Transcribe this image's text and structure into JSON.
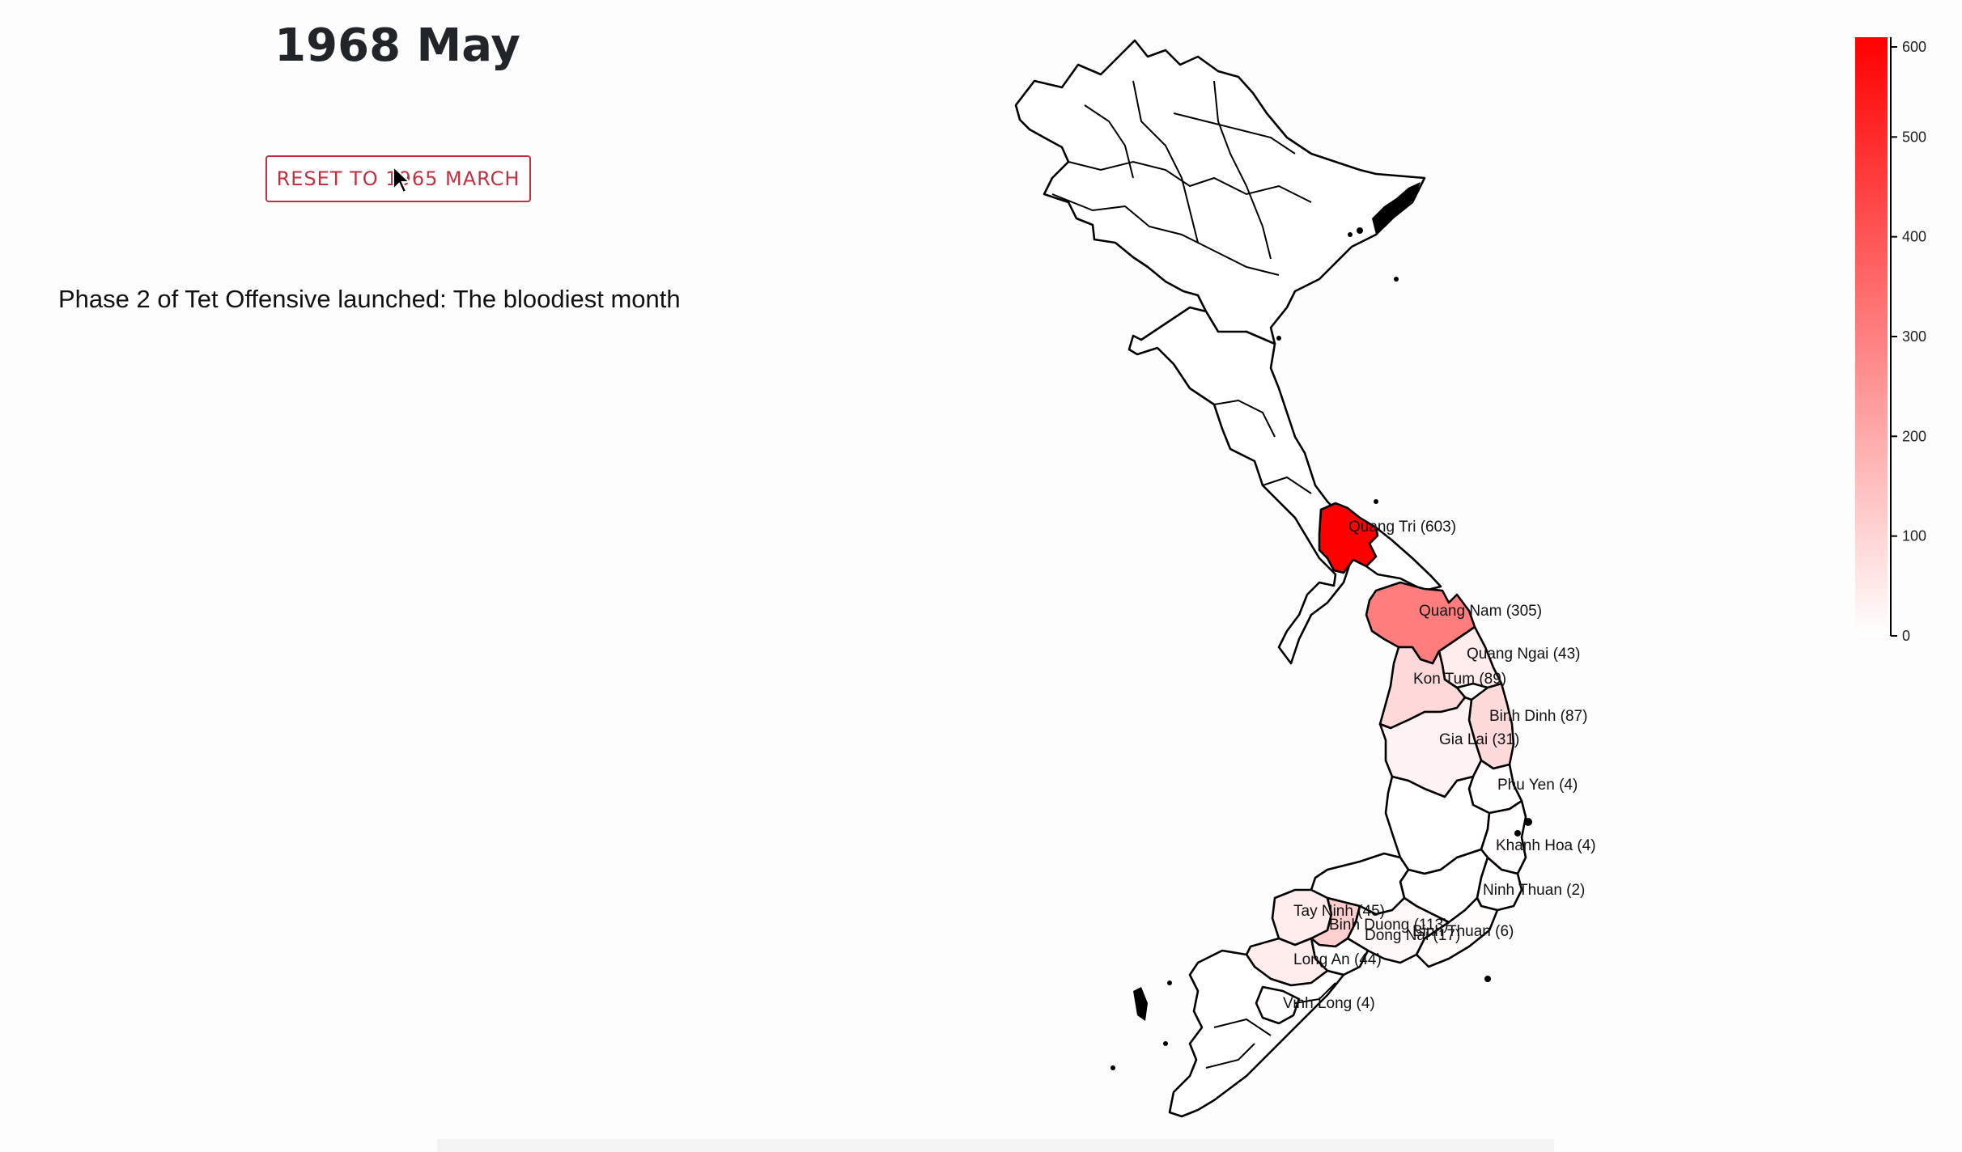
{
  "header": {
    "title": "1968 May"
  },
  "controls": {
    "reset_label": "RESET TO 1965 MARCH"
  },
  "caption": "Phase 2 of Tet Offensive launched: The bloodiest month",
  "map_data": {
    "color_scale": {
      "min": 0,
      "max": 600,
      "low_color": "#ffffff",
      "high_color": "#ff0000",
      "ticks": [
        "0",
        "100",
        "200",
        "300",
        "400",
        "500",
        "600"
      ]
    },
    "provinces": [
      {
        "name": "Quang Tri",
        "value": 603,
        "label": "Quang Tri (603)"
      },
      {
        "name": "Quang Nam",
        "value": 305,
        "label": "Quang Nam (305)"
      },
      {
        "name": "Quang Ngai",
        "value": 43,
        "label": "Quang Ngai (43)"
      },
      {
        "name": "Kon Tum",
        "value": 89,
        "label": "Kon Tum (89)"
      },
      {
        "name": "Binh Dinh",
        "value": 87,
        "label": "Binh Dinh (87)"
      },
      {
        "name": "Gia Lai",
        "value": 31,
        "label": "Gia Lai (31)"
      },
      {
        "name": "Phu Yen",
        "value": 4,
        "label": "Phu Yen (4)"
      },
      {
        "name": "Khanh Hoa",
        "value": 4,
        "label": "Khanh Hoa (4)"
      },
      {
        "name": "Ninh Thuan",
        "value": 2,
        "label": "Ninh Thuan (2)"
      },
      {
        "name": "Binh Thuan",
        "value": 6,
        "label": "Binh Thuan (6)"
      },
      {
        "name": "Tay Ninh",
        "value": 45,
        "label": "Tay Ninh (45)"
      },
      {
        "name": "Binh Duong",
        "value": 113,
        "label": "Binh Duong (113)"
      },
      {
        "name": "Dong Nai",
        "value": 17,
        "label": "Dong Nai (17)"
      },
      {
        "name": "Long An",
        "value": 44,
        "label": "Long An (44)"
      },
      {
        "name": "Vinh Long",
        "value": 4,
        "label": "Vinh Long (4)"
      }
    ]
  }
}
